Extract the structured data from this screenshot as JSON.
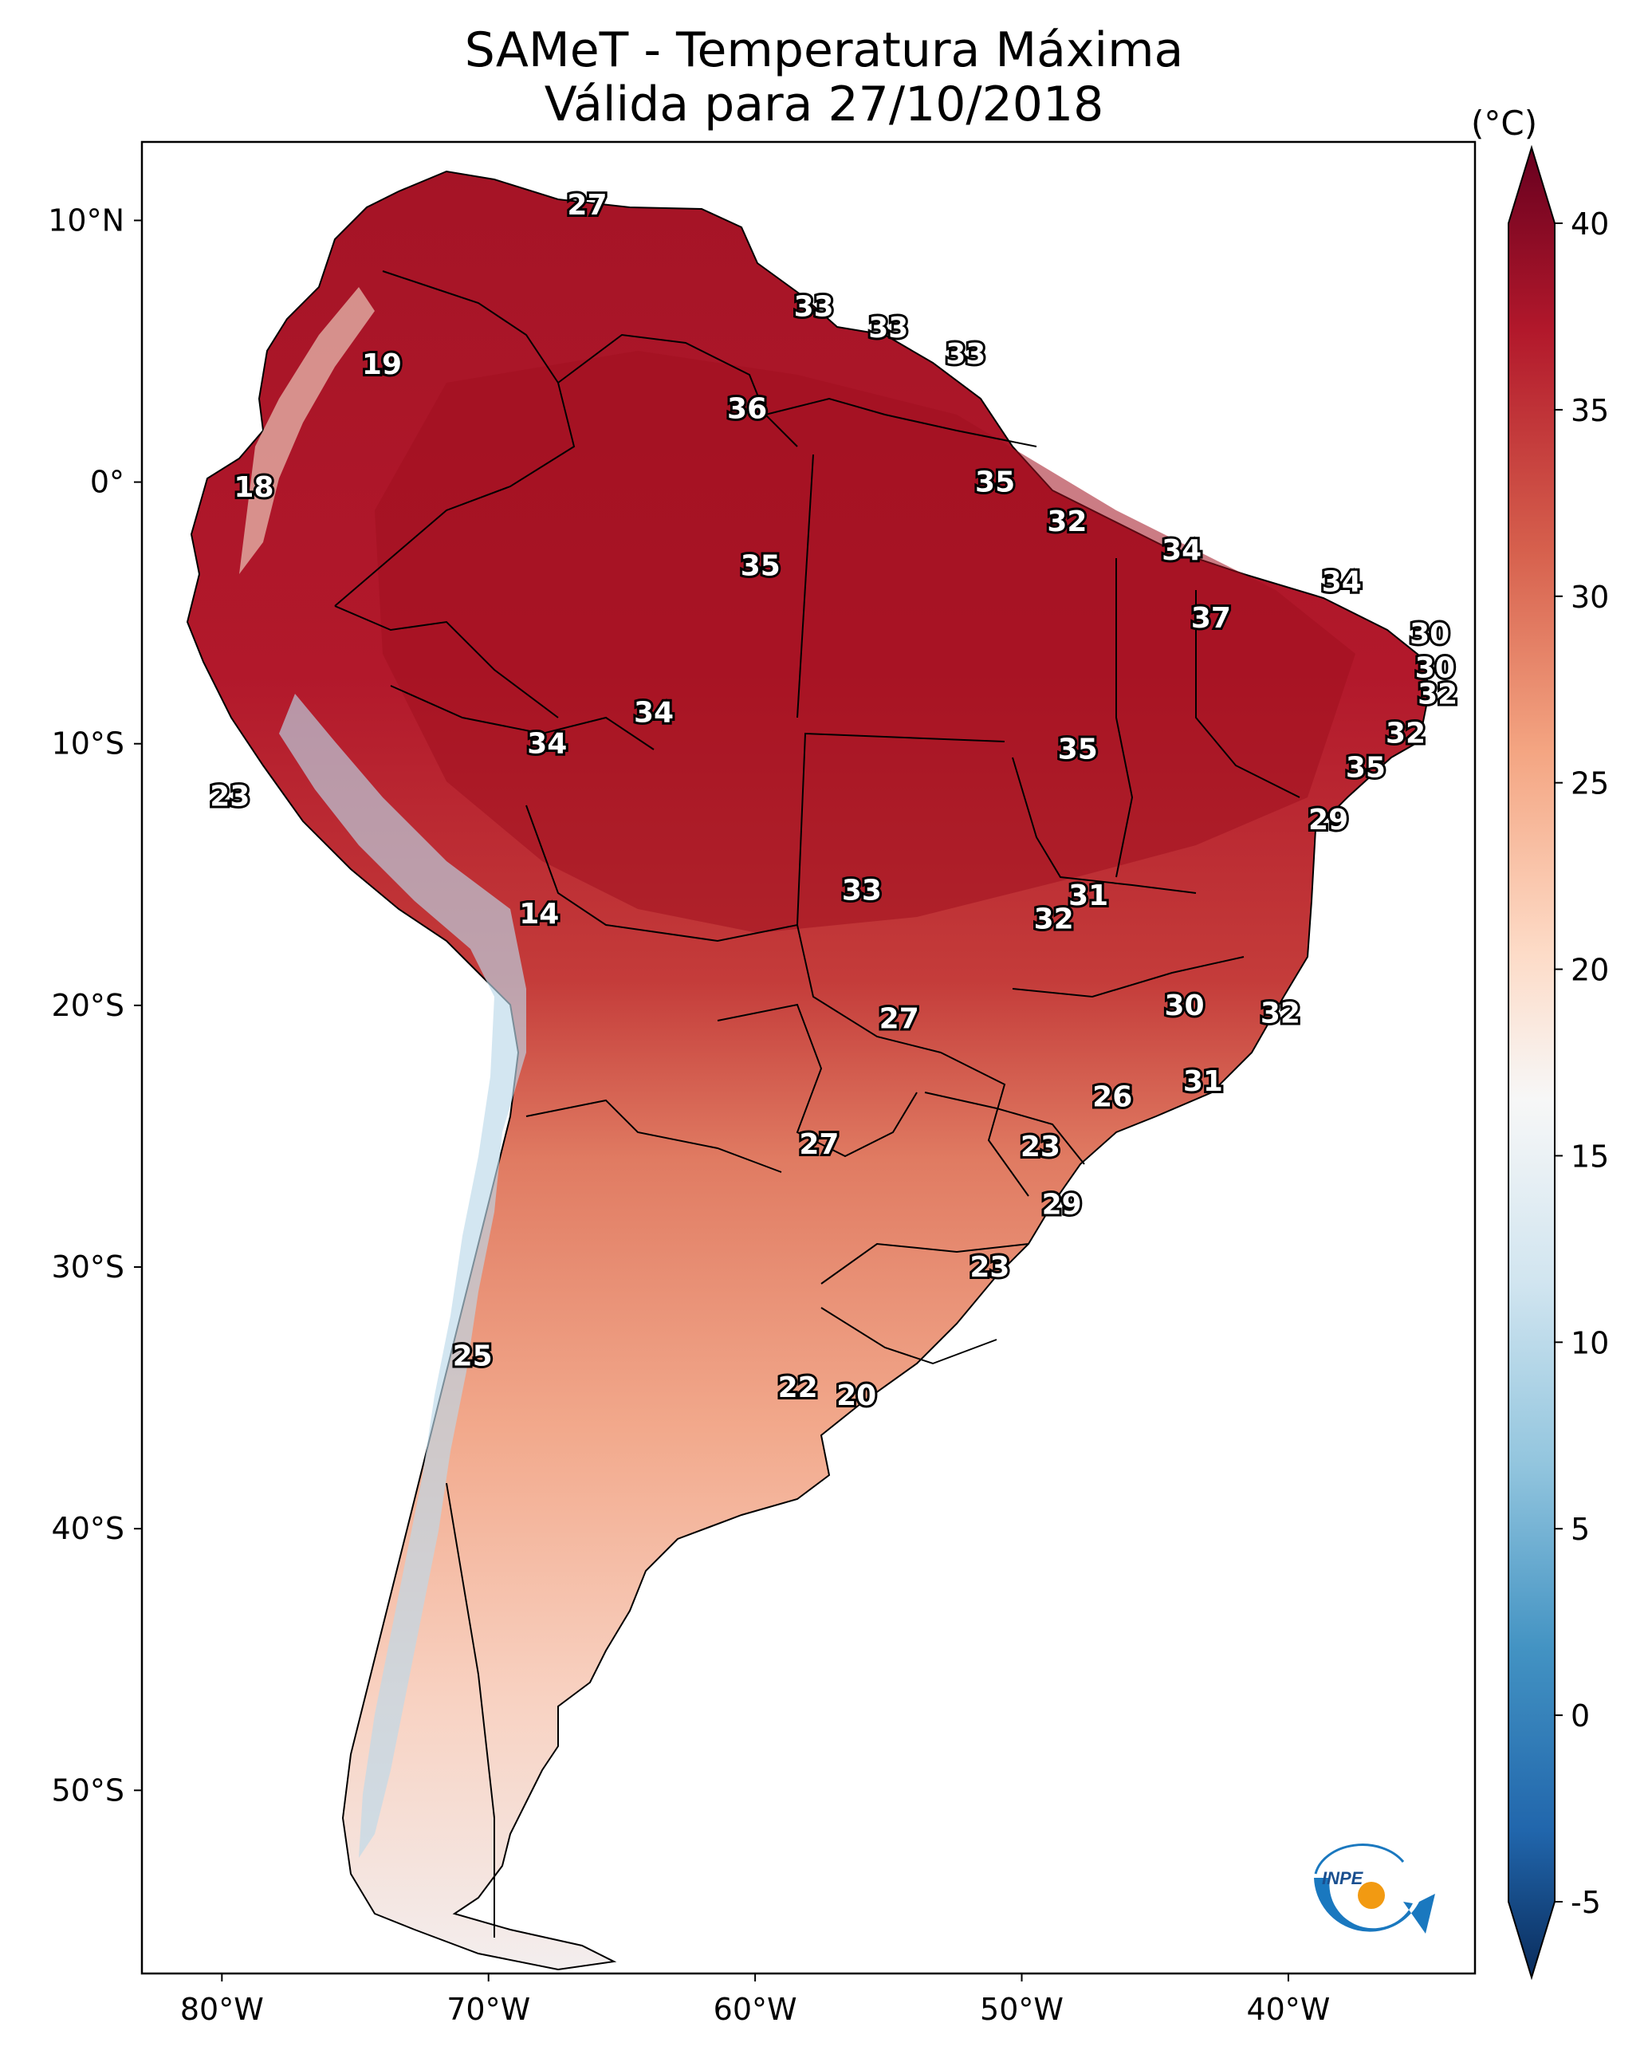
{
  "title_line1": "SAMeT - Temperatura Máxima",
  "title_line2": "Válida para 27/10/2018",
  "colorbar": {
    "unit": "(°C)",
    "min": -5,
    "max": 40,
    "ticks": [
      {
        "value": 40,
        "label": "40"
      },
      {
        "value": 35,
        "label": "35"
      },
      {
        "value": 30,
        "label": "30"
      },
      {
        "value": 25,
        "label": "25"
      },
      {
        "value": 20,
        "label": "20"
      },
      {
        "value": 15,
        "label": "15"
      },
      {
        "value": 10,
        "label": "10"
      },
      {
        "value": 5,
        "label": "5"
      },
      {
        "value": 0,
        "label": "0"
      },
      {
        "value": -5,
        "label": "-5"
      }
    ],
    "colors": [
      "#0a2c5c",
      "#2166ac",
      "#4393c3",
      "#92c5de",
      "#d1e5f0",
      "#f7f7f7",
      "#fddbc7",
      "#f4a582",
      "#d6604d",
      "#b2182b",
      "#67001f"
    ]
  },
  "axes": {
    "lon_min": -83,
    "lon_max": -33,
    "lat_min": -57,
    "lat_max": 13,
    "lon_ticks": [
      {
        "value": -80,
        "label": "80°W"
      },
      {
        "value": -70,
        "label": "70°W"
      },
      {
        "value": -60,
        "label": "60°W"
      },
      {
        "value": -50,
        "label": "50°W"
      },
      {
        "value": -40,
        "label": "40°W"
      }
    ],
    "lat_ticks": [
      {
        "value": 10,
        "label": "10°N"
      },
      {
        "value": 0,
        "label": "0°"
      },
      {
        "value": -10,
        "label": "10°S"
      },
      {
        "value": -20,
        "label": "20°S"
      },
      {
        "value": -30,
        "label": "30°S"
      },
      {
        "value": -40,
        "label": "40°S"
      },
      {
        "value": -50,
        "label": "50°S"
      }
    ]
  },
  "station_values": [
    {
      "lon": -66.3,
      "lat": 10.6,
      "label": "27"
    },
    {
      "lon": -74.0,
      "lat": 4.5,
      "label": "19"
    },
    {
      "lon": -57.8,
      "lat": 6.7,
      "label": "33"
    },
    {
      "lon": -55.0,
      "lat": 5.9,
      "label": "33"
    },
    {
      "lon": -52.1,
      "lat": 4.9,
      "label": "33"
    },
    {
      "lon": -60.3,
      "lat": 2.8,
      "label": "36"
    },
    {
      "lon": -78.8,
      "lat": -0.2,
      "label": "18"
    },
    {
      "lon": -51.0,
      "lat": 0.0,
      "label": "35"
    },
    {
      "lon": -48.3,
      "lat": -1.5,
      "label": "32"
    },
    {
      "lon": -59.8,
      "lat": -3.2,
      "label": "35"
    },
    {
      "lon": -44.0,
      "lat": -2.6,
      "label": "34"
    },
    {
      "lon": -38.0,
      "lat": -3.8,
      "label": "34"
    },
    {
      "lon": -42.9,
      "lat": -5.2,
      "label": "37"
    },
    {
      "lon": -34.7,
      "lat": -5.8,
      "label": "30"
    },
    {
      "lon": -34.5,
      "lat": -7.1,
      "label": "30"
    },
    {
      "lon": -34.4,
      "lat": -8.1,
      "label": "32"
    },
    {
      "lon": -35.6,
      "lat": -9.6,
      "label": "32"
    },
    {
      "lon": -37.1,
      "lat": -10.9,
      "label": "35"
    },
    {
      "lon": -38.5,
      "lat": -12.9,
      "label": "29"
    },
    {
      "lon": -63.8,
      "lat": -8.8,
      "label": "34"
    },
    {
      "lon": -67.8,
      "lat": -10.0,
      "label": "34"
    },
    {
      "lon": -47.9,
      "lat": -10.2,
      "label": "35"
    },
    {
      "lon": -79.7,
      "lat": -12.0,
      "label": "23"
    },
    {
      "lon": -68.1,
      "lat": -16.5,
      "label": "14"
    },
    {
      "lon": -56.0,
      "lat": -15.6,
      "label": "33"
    },
    {
      "lon": -47.5,
      "lat": -15.8,
      "label": "31"
    },
    {
      "lon": -48.8,
      "lat": -16.7,
      "label": "32"
    },
    {
      "lon": -54.6,
      "lat": -20.5,
      "label": "27"
    },
    {
      "lon": -43.9,
      "lat": -20.0,
      "label": "30"
    },
    {
      "lon": -40.3,
      "lat": -20.3,
      "label": "32"
    },
    {
      "lon": -43.2,
      "lat": -22.9,
      "label": "31"
    },
    {
      "lon": -46.6,
      "lat": -23.5,
      "label": "26"
    },
    {
      "lon": -57.6,
      "lat": -25.3,
      "label": "27"
    },
    {
      "lon": -49.3,
      "lat": -25.4,
      "label": "23"
    },
    {
      "lon": -48.5,
      "lat": -27.6,
      "label": "29"
    },
    {
      "lon": -51.2,
      "lat": -30.0,
      "label": "23"
    },
    {
      "lon": -70.6,
      "lat": -33.4,
      "label": "25"
    },
    {
      "lon": -58.4,
      "lat": -34.6,
      "label": "22"
    },
    {
      "lon": -56.2,
      "lat": -34.9,
      "label": "20"
    }
  ],
  "logo_text": "INPE"
}
